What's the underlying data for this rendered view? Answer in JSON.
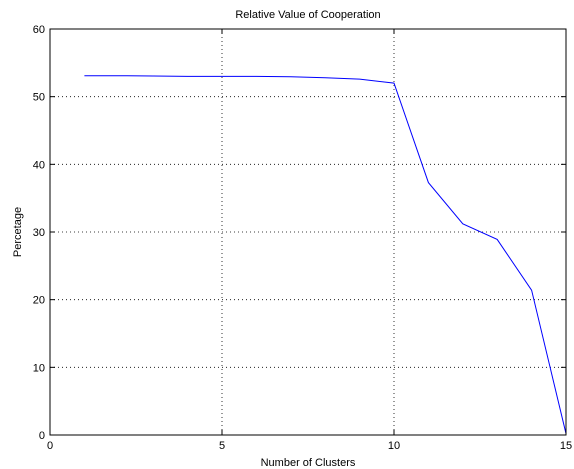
{
  "chart_data": {
    "type": "line",
    "title": "Relative Value of Cooperation",
    "xlabel": "Number of Clusters",
    "ylabel": "Percetage",
    "xlim": [
      0,
      15
    ],
    "ylim": [
      0,
      60
    ],
    "xticks": [
      "0",
      "5",
      "10",
      "15"
    ],
    "yticks": [
      "0",
      "10",
      "20",
      "30",
      "40",
      "50",
      "60"
    ],
    "grid": true,
    "series": [
      {
        "color": "#0000ff",
        "x": [
          1,
          2,
          3,
          4,
          5,
          6,
          7,
          8,
          9,
          10,
          11,
          12,
          13,
          14,
          15
        ],
        "y": [
          53.1,
          53.1,
          53.05,
          53.0,
          53.0,
          53.0,
          52.95,
          52.8,
          52.6,
          52.0,
          37.3,
          31.2,
          28.9,
          21.4,
          0.2
        ]
      }
    ]
  }
}
